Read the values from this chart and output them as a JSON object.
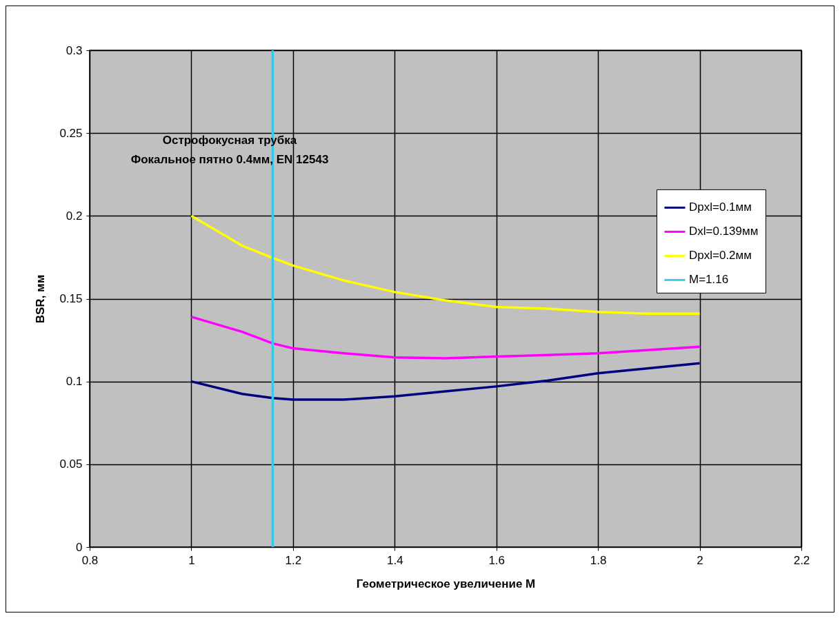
{
  "chart_data": {
    "type": "line",
    "xlabel": "Геометрическое увеличение M",
    "ylabel": "BSR, мм",
    "annotations": [
      "Острофокусная трубка",
      "Фокальное пятно 0.4мм, EN 12543"
    ],
    "x": [
      1,
      1.1,
      1.16,
      1.2,
      1.3,
      1.4,
      1.5,
      1.6,
      1.7,
      1.8,
      1.9,
      2
    ],
    "series": [
      {
        "name": "Dpxl=0.1мм",
        "color": "#000080",
        "values": [
          0.1,
          0.0925,
          0.09,
          0.089,
          0.089,
          0.091,
          0.094,
          0.097,
          0.1005,
          0.105,
          0.108,
          0.111
        ]
      },
      {
        "name": "Dxl=0.139мм",
        "color": "#ff00ff",
        "values": [
          0.139,
          0.13,
          0.123,
          0.12,
          0.117,
          0.1145,
          0.114,
          0.115,
          0.116,
          0.117,
          0.119,
          0.121
        ]
      },
      {
        "name": "Dpxl=0.2мм",
        "color": "#ffff00",
        "values": [
          0.2,
          0.182,
          0.1746,
          0.17,
          0.161,
          0.154,
          0.149,
          0.145,
          0.144,
          0.142,
          0.141,
          0.141
        ]
      },
      {
        "name": "M=1.16",
        "color": "#33ccee",
        "x": [
          1.16,
          1.16
        ],
        "values": [
          0,
          0.3
        ]
      }
    ],
    "xlim": [
      0.8,
      2.2
    ],
    "xticks": [
      0.8,
      1,
      1.2,
      1.4,
      1.6,
      1.8,
      2,
      2.2
    ],
    "ylim": [
      0,
      0.3
    ],
    "yticks": [
      0,
      0.05,
      0.1,
      0.15,
      0.2,
      0.25,
      0.3
    ],
    "grid": true,
    "legend": "right",
    "marker": "none",
    "line_style": "solid"
  }
}
